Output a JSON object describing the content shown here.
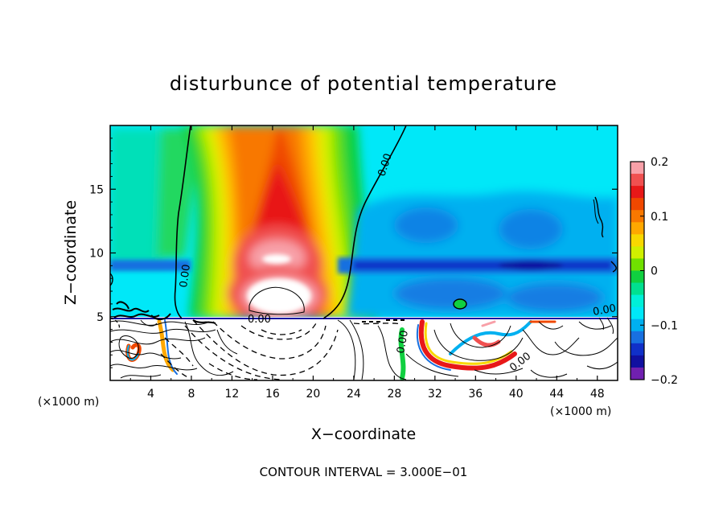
{
  "chart_data": {
    "type": "heatmap",
    "title": "disturbunce of potential temperature",
    "xlabel": "X−coordinate",
    "ylabel": "Z−coordinate",
    "x_units": "(×1000 m)",
    "z_units": "(×1000 m)",
    "xlim": [
      0,
      50
    ],
    "ylim": [
      0,
      20
    ],
    "x_ticks": [
      4,
      8,
      12,
      16,
      20,
      24,
      28,
      32,
      36,
      40,
      44,
      48
    ],
    "x_tick_labels": [
      "4",
      "8",
      "12",
      "16",
      "20",
      "24",
      "28",
      "32",
      "36",
      "40",
      "44",
      "48"
    ],
    "y_ticks": [
      5,
      10,
      15
    ],
    "y_tick_labels": [
      "5",
      "10",
      "15"
    ],
    "colorbar": {
      "min": -0.2,
      "max": 0.2,
      "tick_values": [
        0.2,
        0.1,
        0,
        -0.1,
        -0.2
      ],
      "tick_labels": [
        "0.2",
        "0.1",
        "0",
        "−0.1",
        "−0.2"
      ],
      "colors": [
        "#f8a0a8",
        "#f05050",
        "#e81818",
        "#f04800",
        "#f87800",
        "#ffa800",
        "#f8d800",
        "#d0f000",
        "#70e000",
        "#10d040",
        "#00e090",
        "#00f0d8",
        "#00e8f8",
        "#00b0f0",
        "#1870e0",
        "#1030c8",
        "#1010a0",
        "#7020b0"
      ]
    },
    "contour_labels": [
      "0.00",
      "0.00",
      "0.00",
      "0.00",
      "0.00",
      "0.00"
    ],
    "footer": "CONTOUR INTERVAL = 3.000E−01"
  }
}
